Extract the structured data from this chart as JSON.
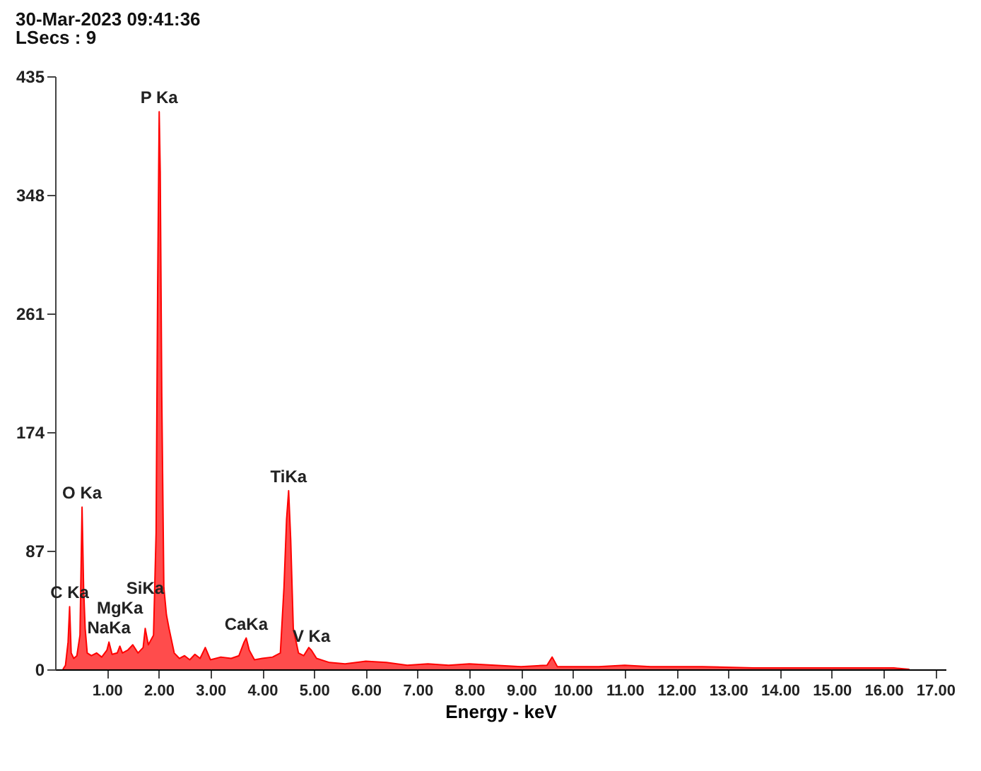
{
  "chart_data": {
    "type": "area",
    "title": "30-Mar-2023 09:41:36",
    "subtitle": "LSecs : 9",
    "xlabel": "Energy - keV",
    "x": [
      0.15,
      0.2,
      0.25,
      0.28,
      0.31,
      0.36,
      0.42,
      0.48,
      0.52,
      0.55,
      0.58,
      0.62,
      0.7,
      0.8,
      0.9,
      1.0,
      1.04,
      1.1,
      1.2,
      1.25,
      1.3,
      1.4,
      1.5,
      1.6,
      1.7,
      1.74,
      1.8,
      1.9,
      1.95,
      1.98,
      2.01,
      2.03,
      2.06,
      2.1,
      2.15,
      2.2,
      2.3,
      2.4,
      2.5,
      2.6,
      2.7,
      2.8,
      2.9,
      3.0,
      3.2,
      3.4,
      3.55,
      3.65,
      3.69,
      3.75,
      3.85,
      4.0,
      4.2,
      4.35,
      4.42,
      4.47,
      4.51,
      4.55,
      4.6,
      4.7,
      4.8,
      4.9,
      4.95,
      5.05,
      5.3,
      5.6,
      6.0,
      6.4,
      6.8,
      7.2,
      7.6,
      8.0,
      8.5,
      9.0,
      9.5,
      9.6,
      9.7,
      10.5,
      11.0,
      11.5,
      12.5,
      13.5,
      14.5,
      15.5,
      16.2,
      16.5
    ],
    "series": [
      {
        "color": "#ff0000",
        "values": [
          0,
          3,
          20,
          46,
          12,
          8,
          10,
          25,
          119,
          60,
          30,
          12,
          10,
          12,
          9,
          14,
          20,
          11,
          12,
          17,
          12,
          14,
          18,
          12,
          16,
          30,
          18,
          25,
          100,
          280,
          409,
          365,
          200,
          60,
          40,
          30,
          12,
          8,
          10,
          7,
          11,
          8,
          16,
          7,
          9,
          8,
          10,
          20,
          23,
          14,
          7,
          8,
          9,
          12,
          60,
          110,
          131,
          95,
          30,
          12,
          10,
          16,
          14,
          8,
          5,
          4,
          6,
          5,
          3,
          4,
          3,
          4,
          3,
          2,
          3,
          9,
          2,
          2,
          3,
          2,
          2,
          1,
          1,
          1,
          1,
          0
        ]
      }
    ],
    "xlim": [
      0,
      17.2
    ],
    "ylim": [
      0,
      435
    ],
    "xticks": [
      {
        "value": 1,
        "label": "1.00"
      },
      {
        "value": 2,
        "label": "2.00"
      },
      {
        "value": 3,
        "label": "3.00"
      },
      {
        "value": 4,
        "label": "4.00"
      },
      {
        "value": 5,
        "label": "5.00"
      },
      {
        "value": 6,
        "label": "6.00"
      },
      {
        "value": 7,
        "label": "7.00"
      },
      {
        "value": 8,
        "label": "8.00"
      },
      {
        "value": 9,
        "label": "9.00"
      },
      {
        "value": 10,
        "label": "10.00"
      },
      {
        "value": 11,
        "label": "11.00"
      },
      {
        "value": 12,
        "label": "12.00"
      },
      {
        "value": 13,
        "label": "13.00"
      },
      {
        "value": 14,
        "label": "14.00"
      },
      {
        "value": 15,
        "label": "15.00"
      },
      {
        "value": 16,
        "label": "16.00"
      },
      {
        "value": 17,
        "label": "17.00"
      }
    ],
    "yticks": [
      0,
      87,
      174,
      261,
      348,
      435
    ],
    "grid": false,
    "annotations": [
      {
        "text": "C Ka",
        "x": 0.28,
        "y": 46
      },
      {
        "text": "O Ka",
        "x": 0.52,
        "y": 119
      },
      {
        "text": "NaKa",
        "x": 1.04,
        "y": 20
      },
      {
        "text": "MgKa",
        "x": 1.25,
        "y": 17
      },
      {
        "text": "SiKa",
        "x": 1.74,
        "y": 30
      },
      {
        "text": "P Ka",
        "x": 2.01,
        "y": 409
      },
      {
        "text": "CaKa",
        "x": 3.69,
        "y": 23
      },
      {
        "text": "TiKa",
        "x": 4.51,
        "y": 131
      },
      {
        "text": "V Ka",
        "x": 4.95,
        "y": 14
      }
    ]
  }
}
